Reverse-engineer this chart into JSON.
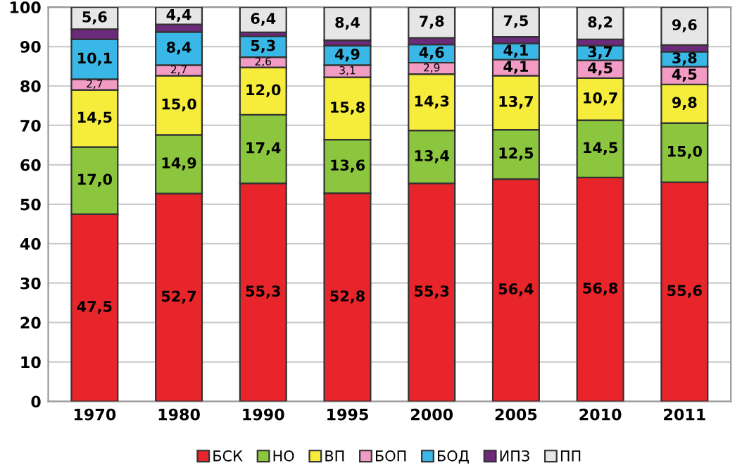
{
  "chart_data": {
    "type": "bar",
    "stacked": true,
    "categories": [
      "1970",
      "1980",
      "1990",
      "1995",
      "2000",
      "2005",
      "2010",
      "2011"
    ],
    "series": [
      {
        "name": "БСК",
        "color": "#e8252a",
        "values": [
          47.5,
          52.7,
          55.3,
          52.8,
          55.3,
          56.4,
          56.8,
          55.6
        ],
        "value_labels": [
          "47,5",
          "52,7",
          "55,3",
          "52,8",
          "55,3",
          "56,4",
          "56,8",
          "55,6"
        ]
      },
      {
        "name": "НО",
        "color": "#8cc63f",
        "values": [
          17.0,
          14.9,
          17.4,
          13.6,
          13.4,
          12.5,
          14.5,
          15.0
        ],
        "value_labels": [
          "17,0",
          "14,9",
          "17,4",
          "13,6",
          "13,4",
          "12,5",
          "14,5",
          "15,0"
        ]
      },
      {
        "name": "ВП",
        "color": "#f5ec3c",
        "values": [
          14.5,
          15.0,
          12.0,
          15.8,
          14.3,
          13.7,
          10.7,
          9.8
        ],
        "value_labels": [
          "14,5",
          "15,0",
          "12,0",
          "15,8",
          "14,3",
          "13,7",
          "10,7",
          "9,8"
        ]
      },
      {
        "name": "БОП",
        "color": "#f29bc4",
        "values": [
          2.7,
          2.7,
          2.6,
          3.1,
          2.9,
          4.1,
          4.5,
          4.5
        ],
        "value_labels": [
          "2,7",
          "2,7",
          "2,6",
          "3,1",
          "2,9",
          "4,1",
          "4,5",
          "4,5"
        ]
      },
      {
        "name": "БОД",
        "color": "#39b8e8",
        "values": [
          10.1,
          8.4,
          5.3,
          4.9,
          4.6,
          4.1,
          3.7,
          3.8
        ],
        "value_labels": [
          "10,1",
          "8,4",
          "5,3",
          "4,9",
          "4,6",
          "4,1",
          "3,7",
          "3,8"
        ]
      },
      {
        "name": "ИПЗ",
        "color": "#6b2a7a",
        "values": [
          2.6,
          1.9,
          1.0,
          1.4,
          1.7,
          1.7,
          1.6,
          1.7
        ]
      },
      {
        "name": "ПП",
        "color": "#e6e6e6",
        "values": [
          5.6,
          4.4,
          6.4,
          8.4,
          7.8,
          7.5,
          8.2,
          9.6
        ],
        "value_labels": [
          "5,6",
          "4,4",
          "6,4",
          "8,4",
          "7,8",
          "7,5",
          "8,2",
          "9,6"
        ]
      }
    ],
    "ylim": [
      0,
      100
    ],
    "yticks": [
      0,
      10,
      20,
      30,
      40,
      50,
      60,
      70,
      80,
      90,
      100
    ],
    "grid": "y",
    "legend": "bottom"
  }
}
